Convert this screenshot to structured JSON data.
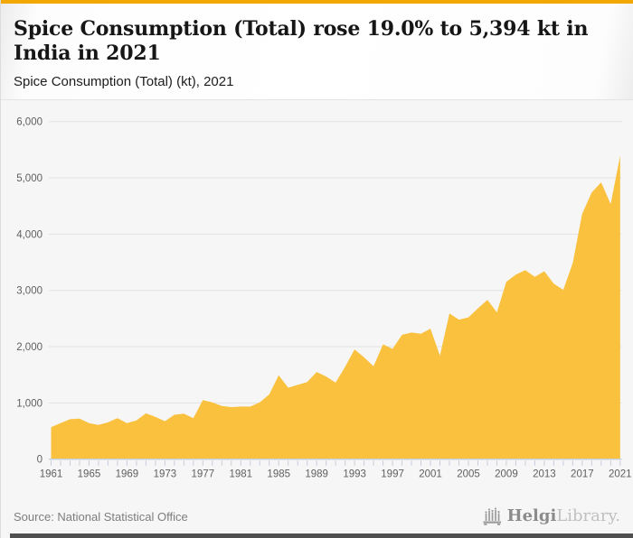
{
  "page": {
    "accent_color": "#F2A702",
    "title": "Spice Consumption (Total) rose 19.0% to 5,394 kt in India in 2021",
    "subtitle": "Spice Consumption (Total) (kt), 2021",
    "source": "Source: National Statistical Office",
    "logo": {
      "brand_bold": "Helgi",
      "brand_light": "Library."
    }
  },
  "chart_data": {
    "type": "area",
    "title": "Spice Consumption (Total) (kt), 2021",
    "series_name": "Spice Consumption (Total), kt",
    "xlabel": "",
    "ylabel": "kt",
    "ylim": [
      0,
      6000
    ],
    "yticks": [
      0,
      1000,
      2000,
      3000,
      4000,
      5000,
      6000
    ],
    "xtick_labels": [
      1961,
      1965,
      1969,
      1973,
      1977,
      1981,
      1985,
      1989,
      1993,
      1997,
      2001,
      2005,
      2009,
      2013,
      2017,
      2021
    ],
    "grid": true,
    "legend": false,
    "highlight_last_value": 5394,
    "change_pct": "19.0%",
    "x": [
      1961,
      1962,
      1963,
      1964,
      1965,
      1966,
      1967,
      1968,
      1969,
      1970,
      1971,
      1972,
      1973,
      1974,
      1975,
      1976,
      1977,
      1978,
      1979,
      1980,
      1981,
      1982,
      1983,
      1984,
      1985,
      1986,
      1987,
      1988,
      1989,
      1990,
      1991,
      1992,
      1993,
      1994,
      1995,
      1996,
      1997,
      1998,
      1999,
      2000,
      2001,
      2002,
      2003,
      2004,
      2005,
      2006,
      2007,
      2008,
      2009,
      2010,
      2011,
      2012,
      2013,
      2014,
      2015,
      2016,
      2017,
      2018,
      2019,
      2020,
      2021
    ],
    "values": [
      570,
      640,
      710,
      720,
      640,
      610,
      655,
      730,
      640,
      690,
      815,
      750,
      675,
      790,
      810,
      730,
      1050,
      1010,
      945,
      925,
      935,
      935,
      1010,
      1150,
      1490,
      1270,
      1320,
      1370,
      1550,
      1470,
      1360,
      1640,
      1950,
      1810,
      1650,
      2040,
      1960,
      2210,
      2250,
      2230,
      2320,
      1840,
      2590,
      2480,
      2520,
      2680,
      2830,
      2610,
      3150,
      3280,
      3360,
      3240,
      3340,
      3120,
      3010,
      3490,
      4360,
      4740,
      4920,
      4533,
      5394
    ],
    "colors": {
      "fill": "#F9C13D",
      "grid": "#e2e2e2",
      "axis": "#c3cedb",
      "tick_label": "#5f5f5f"
    }
  }
}
